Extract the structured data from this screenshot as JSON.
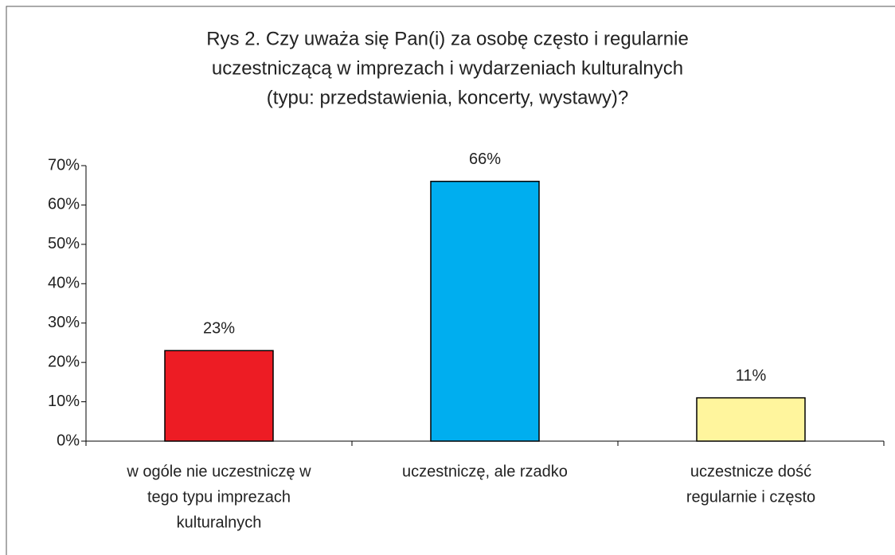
{
  "chart_data": {
    "type": "bar",
    "title": [
      "Rys 2. Czy uważa się Pan(i) za osobę często i regularnie",
      "uczestniczącą w imprezach i wydarzeniach kulturalnych",
      "(typu: przedstawienia, koncerty, wystawy)?"
    ],
    "categories": [
      [
        "w ogóle nie uczestniczę w",
        "tego typu imprezach",
        "kulturalnych"
      ],
      [
        "uczestniczę, ale rzadko"
      ],
      [
        "uczestnicze dość",
        "regularnie i często"
      ]
    ],
    "values": [
      23,
      66,
      11
    ],
    "value_labels": [
      "23%",
      "66%",
      "11%"
    ],
    "colors": [
      "#ed1c24",
      "#00aeef",
      "#fff59d"
    ],
    "ylim": [
      0,
      70
    ],
    "yticks": [
      {
        "value": 0,
        "label": "0%"
      },
      {
        "value": 10,
        "label": "10%"
      },
      {
        "value": 20,
        "label": "20%"
      },
      {
        "value": 30,
        "label": "30%"
      },
      {
        "value": 40,
        "label": "40%"
      },
      {
        "value": 50,
        "label": "50%"
      },
      {
        "value": 60,
        "label": "60%"
      },
      {
        "value": 70,
        "label": "70%"
      }
    ]
  }
}
